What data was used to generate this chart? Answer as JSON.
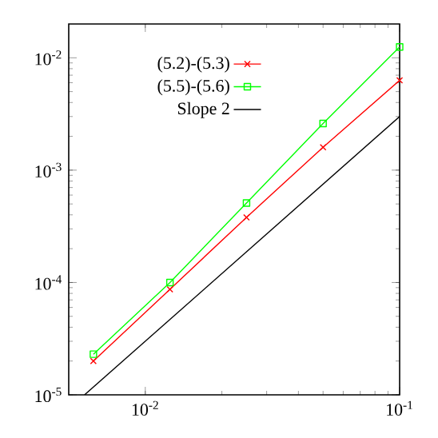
{
  "chart_data": {
    "type": "line",
    "log": "xy",
    "grid": false,
    "legend": "top",
    "xlim": [
      0.005,
      0.1
    ],
    "ylim": [
      1e-05,
      0.02
    ],
    "xticks": [
      {
        "value": 0.01,
        "label": "10$^{-2}$"
      },
      {
        "value": 0.1,
        "label": "10$^{-1}$"
      }
    ],
    "yticks": [
      {
        "value": 1e-05,
        "label": "10$^{-5}$"
      },
      {
        "value": 0.0001,
        "label": "10$^{-4}$"
      },
      {
        "value": 0.001,
        "label": "10$^{-3}$"
      },
      {
        "value": 0.01,
        "label": "10$^{-2}$"
      }
    ],
    "x": [
      0.00625,
      0.0125,
      0.025,
      0.05,
      0.1
    ],
    "series": [
      {
        "name": "(5.2)-(5.3)",
        "color": "#ff0000",
        "marker": "cross",
        "values": [
          2e-05,
          8.7e-05,
          0.00038,
          0.0016,
          0.0063
        ]
      },
      {
        "name": "(5.5)-(5.6)",
        "color": "#00ff00",
        "marker": "square",
        "values": [
          2.3e-05,
          0.0001,
          0.00051,
          0.0026,
          0.0125
        ]
      },
      {
        "name": "Slope 2",
        "color": "#000000",
        "marker": "none",
        "x": [
          0.00577,
          0.1
        ],
        "values": [
          1e-05,
          0.003
        ]
      }
    ]
  }
}
